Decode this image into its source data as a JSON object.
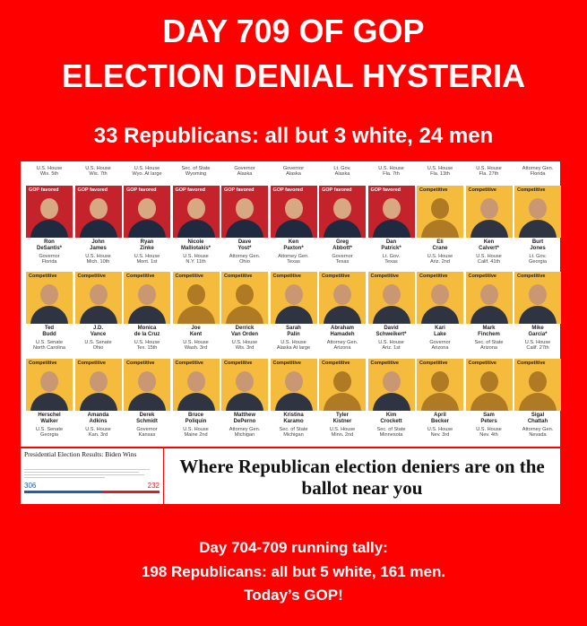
{
  "header": {
    "line1": "DAY 709 OF GOP",
    "line2": "ELECTION DENIAL HYSTERIA",
    "subtitle": "33 Republicans:  all but 3 white, 24 men"
  },
  "grid": {
    "top_labels": [
      "U.S. House\nWis. 5th",
      "U.S. House\nWis. 7th",
      "U.S. House\nWyo. At large",
      "Sec. of State\nWyoming",
      "Governor\nAlaska",
      "Governor\nAlaska",
      "Lt. Gov.\nAlaska",
      "U.S. House\nFla. 7th",
      "U.S. House\nFla. 13th",
      "U.S. House\nFla. 27th",
      "Attorney Gen.\nFlorida"
    ],
    "tags": {
      "gop": "GOP favored",
      "comp": "Competitive"
    },
    "rows": [
      [
        {
          "name": "Ron\nDeSantis*",
          "office": "Governor\nFlorida",
          "tag": "gop",
          "photo": true
        },
        {
          "name": "John\nJames",
          "office": "U.S. House\nMich. 10th",
          "tag": "gop",
          "photo": true
        },
        {
          "name": "Ryan\nZinke",
          "office": "U.S. House\nMont. 1st",
          "tag": "gop",
          "photo": true
        },
        {
          "name": "Nicole\nMalliotakis*",
          "office": "U.S. House\nN.Y. 11th",
          "tag": "gop",
          "photo": true
        },
        {
          "name": "Dave\nYost*",
          "office": "Attorney Gen.\nOhio",
          "tag": "gop",
          "photo": true
        },
        {
          "name": "Ken\nPaxton*",
          "office": "Attorney Gen.\nTexas",
          "tag": "gop",
          "photo": true
        },
        {
          "name": "Greg\nAbbott*",
          "office": "Governor\nTexas",
          "tag": "gop",
          "photo": true
        },
        {
          "name": "Dan\nPatrick*",
          "office": "Lt. Gov.\nTexas",
          "tag": "gop",
          "photo": true
        },
        {
          "name": "Eli\nCrane",
          "office": "U.S. House\nAriz. 2nd",
          "tag": "comp",
          "photo": false
        },
        {
          "name": "Ken\nCalvert*",
          "office": "U.S. House\nCalif. 41th",
          "tag": "comp",
          "photo": true
        },
        {
          "name": "Burt\nJones",
          "office": "Lt. Gov.\nGeorgia",
          "tag": "comp",
          "photo": true
        }
      ],
      [
        {
          "name": "Ted\nBudd",
          "office": "U.S. Senate\nNorth Carolina",
          "tag": "comp",
          "photo": true
        },
        {
          "name": "J.D.\nVance",
          "office": "U.S. Senate\nOhio",
          "tag": "comp",
          "photo": true
        },
        {
          "name": "Monica\nde la Cruz",
          "office": "U.S. House\nTex. 15th",
          "tag": "comp",
          "photo": true
        },
        {
          "name": "Joe\nKent",
          "office": "U.S. House\nWash. 3rd",
          "tag": "comp",
          "photo": false
        },
        {
          "name": "Derrick\nVan Orden",
          "office": "U.S. House\nWis. 3rd",
          "tag": "comp",
          "photo": false
        },
        {
          "name": "Sarah\nPalin",
          "office": "U.S. House\nAlaska At large",
          "tag": "comp",
          "photo": true
        },
        {
          "name": "Abraham\nHamadeh",
          "office": "Attorney Gen.\nArizona",
          "tag": "comp",
          "photo": true
        },
        {
          "name": "David\nSchweikert*",
          "office": "U.S. House\nAriz. 1st",
          "tag": "comp",
          "photo": true
        },
        {
          "name": "Kari\nLake",
          "office": "Governor\nArizona",
          "tag": "comp",
          "photo": true
        },
        {
          "name": "Mark\nFinchem",
          "office": "Sec. of State\nArizona",
          "tag": "comp",
          "photo": true
        },
        {
          "name": "Mike\nGarcia*",
          "office": "U.S. House\nCalif. 27th",
          "tag": "comp",
          "photo": true
        }
      ],
      [
        {
          "name": "Herschel\nWalker",
          "office": "U.S. Senate\nGeorgia",
          "tag": "comp",
          "photo": true
        },
        {
          "name": "Amanda\nAdkins",
          "office": "U.S. House\nKan. 3rd",
          "tag": "comp",
          "photo": true
        },
        {
          "name": "Derek\nSchmidt",
          "office": "Governor\nKansas",
          "tag": "comp",
          "photo": true
        },
        {
          "name": "Bruce\nPoliquin",
          "office": "U.S. House\nMaine 2nd",
          "tag": "comp",
          "photo": true
        },
        {
          "name": "Matthew\nDePerno",
          "office": "Attorney Gen.\nMichigan",
          "tag": "comp",
          "photo": true
        },
        {
          "name": "Kristina\nKaramo",
          "office": "Sec. of State\nMichigan",
          "tag": "comp",
          "photo": true
        },
        {
          "name": "Tyler\nKistner",
          "office": "U.S. House\nMinn. 2nd",
          "tag": "comp",
          "photo": false
        },
        {
          "name": "Kim\nCrockett",
          "office": "Sec. of State\nMinnesota",
          "tag": "comp",
          "photo": true
        },
        {
          "name": "April\nBecker",
          "office": "U.S. House\nNev. 3rd",
          "tag": "comp",
          "photo": false
        },
        {
          "name": "Sam\nPeters",
          "office": "U.S. House\nNev. 4th",
          "tag": "comp",
          "photo": false
        },
        {
          "name": "Sigal\nChattah",
          "office": "Attorney Gen.\nNevada",
          "tag": "comp",
          "photo": false
        }
      ]
    ]
  },
  "thumbnail": {
    "title": "Presidential Election Results: Biden Wins",
    "left_value": "306",
    "right_value": "232",
    "left_share": 0.569,
    "left_color": "#1b5fb5",
    "right_color": "#d42027"
  },
  "headline": "Where Republican election deniers are on the ballot near you",
  "footer": {
    "line1": "Day 704-709 running tally:",
    "line2": "198 Republicans:  all but 5 white, 161 men.",
    "line3": "Today’s GOP!"
  }
}
